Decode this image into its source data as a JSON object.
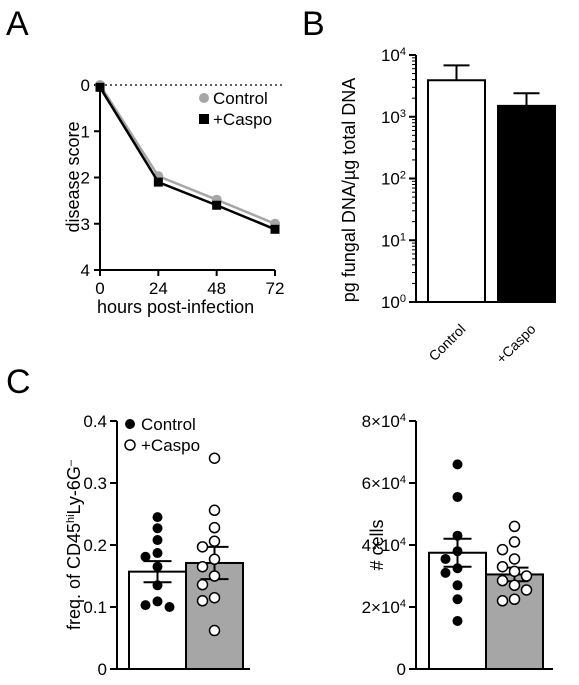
{
  "figure": {
    "panel_labels": [
      "A",
      "B",
      "C"
    ]
  },
  "chart_data": [
    {
      "panel": "A",
      "type": "line",
      "x": [
        0,
        24,
        48,
        72
      ],
      "xlabel": "hours post-infection",
      "ylabel": "disease score",
      "xticks": [
        "0",
        "24",
        "48",
        "72"
      ],
      "yticks": [
        "0",
        "1",
        "2",
        "3",
        "4"
      ],
      "ylim": [
        0,
        4
      ],
      "y_inverted": true,
      "reference_line": {
        "y": 0,
        "style": "dotted"
      },
      "legend_position": "top-right",
      "series": [
        {
          "name": "Control",
          "values": [
            0.0,
            1.97,
            2.48,
            3.0
          ],
          "color": "#a6a6a6",
          "marker": "circle"
        },
        {
          "name": "+Caspo",
          "values": [
            0.05,
            2.1,
            2.6,
            3.12
          ],
          "color": "#000000",
          "marker": "square"
        }
      ]
    },
    {
      "panel": "B",
      "type": "bar",
      "categories": [
        "Control",
        "+Caspo"
      ],
      "values": [
        3900,
        1500
      ],
      "errors_upper": [
        6800,
        2400
      ],
      "fill": [
        "#ffffff",
        "#000000"
      ],
      "ylabel": "pg fungal DNA/µg total DNA",
      "yscale": "log",
      "ylim": [
        1,
        10000
      ],
      "yticks": [
        {
          "base": "10",
          "exp": "0"
        },
        {
          "base": "10",
          "exp": "1"
        },
        {
          "base": "10",
          "exp": "2"
        },
        {
          "base": "10",
          "exp": "3"
        },
        {
          "base": "10",
          "exp": "4"
        }
      ]
    },
    {
      "panel": "C-left",
      "type": "bar",
      "categories": [
        "Control",
        "+Caspo"
      ],
      "values": [
        0.157,
        0.171
      ],
      "sem": [
        0.017,
        0.026
      ],
      "fill": [
        "#ffffff",
        "#a6a6a6"
      ],
      "ylabel": {
        "p1": "freq. of CD45",
        "sup1": "hi",
        "p2": "Ly-6G",
        "sup2": "–"
      },
      "ylim": [
        0,
        0.4
      ],
      "yticks": [
        "0",
        "0.1",
        "0.2",
        "0.3",
        "0.4"
      ],
      "legend_position": "top-left",
      "legend": [
        {
          "name": "Control",
          "marker": "filled-circle"
        },
        {
          "name": "+Caspo",
          "marker": "open-circle"
        }
      ],
      "points": [
        [
          0.245,
          0.227,
          0.208,
          0.187,
          0.181,
          0.165,
          0.135,
          0.109,
          0.103,
          0.1
        ],
        [
          0.34,
          0.256,
          0.228,
          0.206,
          0.197,
          0.177,
          0.165,
          0.15,
          0.136,
          0.115,
          0.11,
          0.062
        ]
      ]
    },
    {
      "panel": "C-right",
      "type": "bar",
      "categories": [
        "Control",
        "+Caspo"
      ],
      "values": [
        37500,
        30500
      ],
      "sem": [
        4500,
        2200
      ],
      "fill": [
        "#ffffff",
        "#a6a6a6"
      ],
      "ylabel": "# cells",
      "ylim": [
        0,
        80000
      ],
      "yticks": [
        {
          "mant": "0",
          "exp": ""
        },
        {
          "mant": "2×10",
          "exp": "4"
        },
        {
          "mant": "4×10",
          "exp": "4"
        },
        {
          "mant": "6×10",
          "exp": "4"
        },
        {
          "mant": "8×10",
          "exp": "4"
        }
      ],
      "points": [
        [
          66000,
          55500,
          43000,
          38000,
          35500,
          32500,
          31000,
          27000,
          22500,
          15500
        ],
        [
          46000,
          41000,
          38500,
          35500,
          33000,
          31500,
          30000,
          28500,
          27000,
          25500,
          22500,
          22000
        ]
      ]
    }
  ]
}
